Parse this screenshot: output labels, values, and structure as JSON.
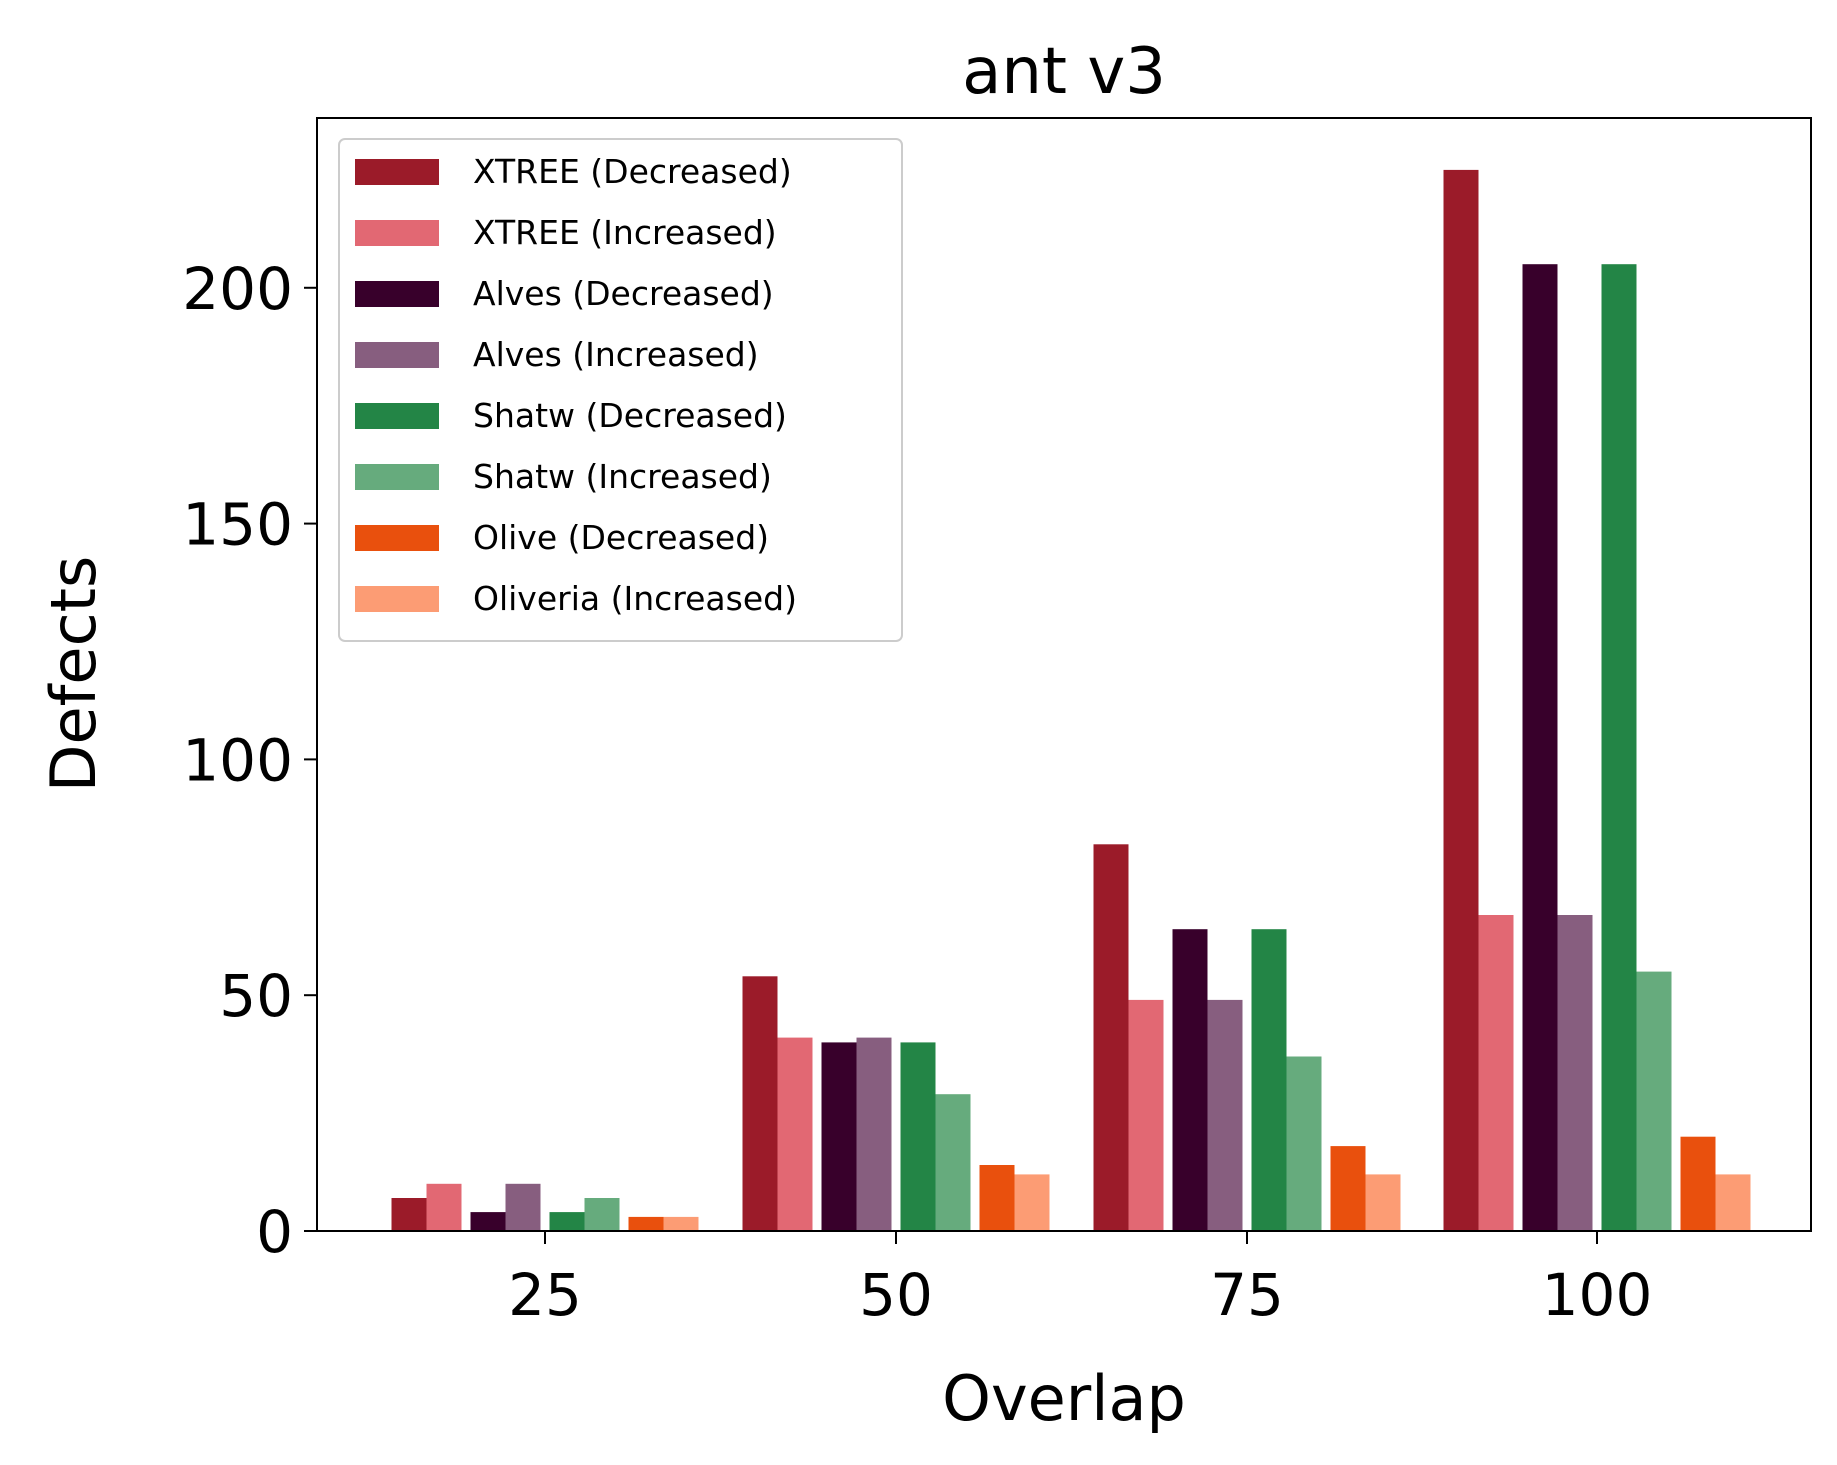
{
  "chart_data": {
    "type": "bar",
    "title": "ant v3",
    "xlabel": "Overlap",
    "ylabel": "Defects",
    "categories": [
      "25",
      "50",
      "75",
      "100"
    ],
    "ylim": [
      0,
      236
    ],
    "yticks": [
      0,
      50,
      100,
      150,
      200
    ],
    "grid": false,
    "legend_position": "top-left",
    "series": [
      {
        "name": "XTREE (Decreased)",
        "color": "#9b1b29",
        "values": [
          7,
          54,
          82,
          225
        ]
      },
      {
        "name": "XTREE (Increased)",
        "color": "#e26873",
        "values": [
          10,
          41,
          49,
          67
        ]
      },
      {
        "name": "Alves (Decreased)",
        "color": "#38002b",
        "values": [
          4,
          40,
          64,
          205
        ]
      },
      {
        "name": "Alves (Increased)",
        "color": "#875e7f",
        "values": [
          10,
          41,
          49,
          67
        ]
      },
      {
        "name": "Shatw (Decreased)",
        "color": "#238546",
        "values": [
          4,
          40,
          64,
          205
        ]
      },
      {
        "name": "Shatw (Increased)",
        "color": "#66ab7d",
        "values": [
          7,
          29,
          37,
          55
        ]
      },
      {
        "name": "Olive (Decreased)",
        "color": "#e9500d",
        "values": [
          3,
          14,
          18,
          20
        ]
      },
      {
        "name": "Oliveria (Increased)",
        "color": "#fc9c74",
        "values": [
          3,
          12,
          12,
          12
        ]
      }
    ]
  }
}
